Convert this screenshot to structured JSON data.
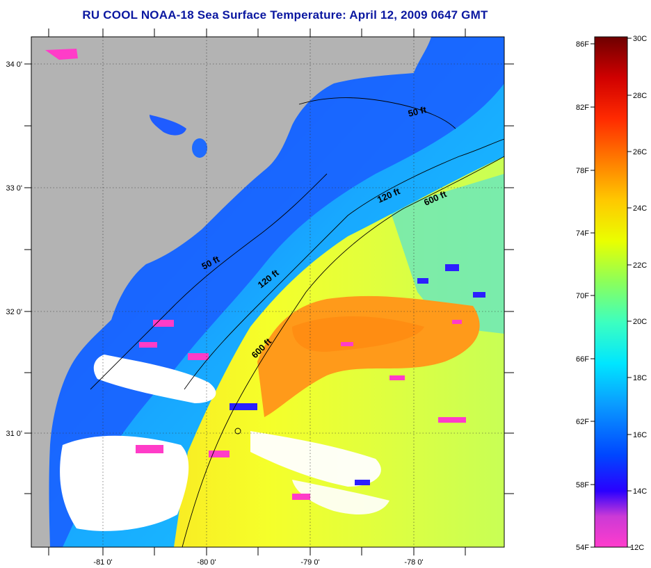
{
  "title": "RU COOL  NOAA-18  Sea Surface Temperature:  April 12, 2009 0647 GMT",
  "latitude_labels": [
    "34 0'",
    "33 0'",
    "32 0'",
    "31 0'"
  ],
  "longitude_labels": [
    "-81 0'",
    "-80 0'",
    "-79 0'",
    "-78 0'"
  ],
  "contour_labels": [
    "50 ft",
    "120 ft",
    "600 ft",
    "50 ft",
    "120 ft",
    "600 ft"
  ],
  "colorbar": {
    "fahrenheit_labels": [
      "86F",
      "82F",
      "78F",
      "74F",
      "70F",
      "66F",
      "62F",
      "58F",
      "54F"
    ],
    "celsius_labels": [
      "30C",
      "28C",
      "26C",
      "24C",
      "22C",
      "20C",
      "18C",
      "16C",
      "14C",
      "12C"
    ],
    "gradient_colors": [
      "#7a0000",
      "#c00000",
      "#ff1a00",
      "#ff6a00",
      "#ffa500",
      "#ffd800",
      "#f2ff00",
      "#a8ff3c",
      "#3cffb4",
      "#00e6ff",
      "#0aa8ff",
      "#0a5cff",
      "#0000ff",
      "#8a3ad6",
      "#ff3cc8"
    ]
  },
  "colors": {
    "land": "#b3b3b3",
    "cloud": "#ffffff",
    "nearshore": "#1a6bff",
    "shelf": "#19b4ff",
    "gulf_stream": "#ff9f1a",
    "offshore": "#ffe21a"
  }
}
